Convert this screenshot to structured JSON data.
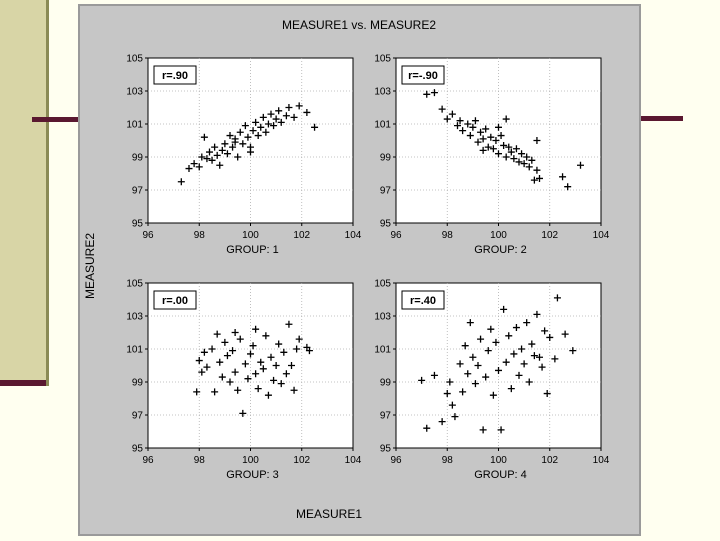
{
  "slide": {
    "colors": {
      "background": "#fffff0",
      "panel": "#d8d5a6",
      "rule": "#5a1830",
      "figure": "#c6c6c6"
    }
  },
  "chart_data": {
    "type": "scatter",
    "title": "MEASURE1 vs. MEASURE2",
    "xlabel": "MEASURE1",
    "ylabel": "MEASURE2",
    "xlim": [
      96,
      104
    ],
    "ylim": [
      95,
      105
    ],
    "xticks": [
      "96",
      "98",
      "100",
      "102",
      "104"
    ],
    "yticks": [
      "95",
      "97",
      "99",
      "101",
      "103",
      "105"
    ],
    "panels": [
      {
        "name": "GROUP: 1",
        "r_label": "r=.90",
        "points": [
          [
            97.3,
            97.5
          ],
          [
            97.6,
            98.3
          ],
          [
            97.8,
            98.6
          ],
          [
            98.0,
            98.4
          ],
          [
            98.1,
            99.0
          ],
          [
            98.3,
            98.9
          ],
          [
            98.4,
            99.3
          ],
          [
            98.5,
            98.8
          ],
          [
            98.6,
            99.6
          ],
          [
            98.7,
            99.1
          ],
          [
            98.8,
            98.5
          ],
          [
            98.9,
            99.4
          ],
          [
            99.0,
            99.8
          ],
          [
            99.1,
            99.2
          ],
          [
            99.2,
            100.3
          ],
          [
            99.3,
            99.6
          ],
          [
            99.4,
            100.1
          ],
          [
            99.5,
            99.0
          ],
          [
            99.6,
            100.5
          ],
          [
            99.7,
            99.8
          ],
          [
            99.8,
            100.9
          ],
          [
            99.9,
            100.2
          ],
          [
            100.0,
            99.6
          ],
          [
            100.1,
            100.6
          ],
          [
            100.2,
            101.1
          ],
          [
            100.3,
            100.3
          ],
          [
            100.4,
            100.8
          ],
          [
            100.5,
            101.4
          ],
          [
            100.6,
            100.5
          ],
          [
            100.7,
            101.0
          ],
          [
            100.8,
            101.6
          ],
          [
            100.9,
            100.9
          ],
          [
            101.0,
            101.3
          ],
          [
            101.1,
            101.8
          ],
          [
            101.2,
            101.1
          ],
          [
            101.4,
            101.5
          ],
          [
            101.5,
            102.0
          ],
          [
            101.7,
            101.4
          ],
          [
            101.9,
            102.1
          ],
          [
            102.2,
            101.7
          ],
          [
            102.5,
            100.8
          ],
          [
            98.2,
            100.2
          ],
          [
            100.0,
            99.3
          ],
          [
            99.4,
            99.9
          ]
        ]
      },
      {
        "name": "GROUP: 2",
        "r_label": "r=-.90",
        "points": [
          [
            97.2,
            102.8
          ],
          [
            97.5,
            102.9
          ],
          [
            97.8,
            101.9
          ],
          [
            98.0,
            101.3
          ],
          [
            98.2,
            101.6
          ],
          [
            98.4,
            100.9
          ],
          [
            98.5,
            101.2
          ],
          [
            98.6,
            100.6
          ],
          [
            98.8,
            101.0
          ],
          [
            98.9,
            100.3
          ],
          [
            99.0,
            100.8
          ],
          [
            99.1,
            101.2
          ],
          [
            99.2,
            99.9
          ],
          [
            99.3,
            100.5
          ],
          [
            99.4,
            100.1
          ],
          [
            99.5,
            100.7
          ],
          [
            99.6,
            99.6
          ],
          [
            99.7,
            100.2
          ],
          [
            99.8,
            99.5
          ],
          [
            99.9,
            100.0
          ],
          [
            100.0,
            99.2
          ],
          [
            100.1,
            100.3
          ],
          [
            100.2,
            99.7
          ],
          [
            100.3,
            99.0
          ],
          [
            100.4,
            99.6
          ],
          [
            100.5,
            99.3
          ],
          [
            100.6,
            98.9
          ],
          [
            100.7,
            99.5
          ],
          [
            100.8,
            98.7
          ],
          [
            100.9,
            99.2
          ],
          [
            101.0,
            98.6
          ],
          [
            101.1,
            99.0
          ],
          [
            101.2,
            98.4
          ],
          [
            101.3,
            98.8
          ],
          [
            101.4,
            97.6
          ],
          [
            101.5,
            98.2
          ],
          [
            101.6,
            97.7
          ],
          [
            102.5,
            97.8
          ],
          [
            102.7,
            97.2
          ],
          [
            103.2,
            98.5
          ],
          [
            100.0,
            100.8
          ],
          [
            101.5,
            100.0
          ],
          [
            99.4,
            99.4
          ],
          [
            100.3,
            101.3
          ]
        ]
      },
      {
        "name": "GROUP: 3",
        "r_label": "r=.00",
        "points": [
          [
            97.9,
            98.4
          ],
          [
            98.0,
            100.3
          ],
          [
            98.1,
            99.6
          ],
          [
            98.2,
            100.8
          ],
          [
            98.3,
            99.9
          ],
          [
            98.5,
            101.0
          ],
          [
            98.6,
            98.4
          ],
          [
            98.7,
            101.9
          ],
          [
            98.8,
            100.2
          ],
          [
            98.9,
            99.3
          ],
          [
            99.0,
            101.4
          ],
          [
            99.1,
            100.6
          ],
          [
            99.2,
            99.0
          ],
          [
            99.3,
            100.9
          ],
          [
            99.4,
            99.6
          ],
          [
            99.5,
            98.5
          ],
          [
            99.6,
            101.6
          ],
          [
            99.7,
            97.1
          ],
          [
            99.8,
            100.1
          ],
          [
            99.9,
            99.2
          ],
          [
            100.0,
            100.7
          ],
          [
            100.1,
            101.2
          ],
          [
            100.2,
            99.5
          ],
          [
            100.3,
            98.6
          ],
          [
            100.4,
            100.2
          ],
          [
            100.5,
            99.8
          ],
          [
            100.6,
            101.8
          ],
          [
            100.7,
            98.2
          ],
          [
            100.8,
            100.5
          ],
          [
            100.9,
            99.1
          ],
          [
            101.0,
            100.0
          ],
          [
            101.1,
            101.3
          ],
          [
            101.2,
            98.9
          ],
          [
            101.3,
            100.8
          ],
          [
            101.4,
            99.5
          ],
          [
            101.5,
            102.5
          ],
          [
            101.6,
            100.0
          ],
          [
            101.7,
            98.5
          ],
          [
            101.8,
            101.0
          ],
          [
            101.9,
            101.6
          ],
          [
            102.2,
            101.1
          ],
          [
            102.3,
            100.9
          ],
          [
            99.4,
            102.0
          ],
          [
            100.2,
            102.2
          ]
        ]
      },
      {
        "name": "GROUP: 4",
        "r_label": "r=.40",
        "points": [
          [
            97.0,
            99.1
          ],
          [
            97.2,
            96.2
          ],
          [
            97.5,
            99.4
          ],
          [
            97.8,
            96.6
          ],
          [
            98.0,
            98.3
          ],
          [
            98.1,
            99.0
          ],
          [
            98.2,
            97.6
          ],
          [
            98.3,
            96.9
          ],
          [
            98.5,
            100.1
          ],
          [
            98.6,
            98.4
          ],
          [
            98.7,
            101.2
          ],
          [
            98.8,
            99.5
          ],
          [
            98.9,
            102.6
          ],
          [
            99.0,
            100.5
          ],
          [
            99.1,
            98.9
          ],
          [
            99.2,
            100.0
          ],
          [
            99.3,
            101.6
          ],
          [
            99.4,
            96.1
          ],
          [
            99.5,
            99.3
          ],
          [
            99.6,
            100.9
          ],
          [
            99.7,
            102.2
          ],
          [
            99.8,
            98.2
          ],
          [
            99.9,
            101.4
          ],
          [
            100.0,
            99.7
          ],
          [
            100.1,
            96.1
          ],
          [
            100.2,
            103.4
          ],
          [
            100.3,
            100.2
          ],
          [
            100.4,
            101.8
          ],
          [
            100.5,
            98.6
          ],
          [
            100.6,
            100.7
          ],
          [
            100.7,
            102.3
          ],
          [
            100.8,
            99.4
          ],
          [
            100.9,
            101.0
          ],
          [
            101.0,
            100.1
          ],
          [
            101.1,
            102.6
          ],
          [
            101.2,
            99.0
          ],
          [
            101.3,
            101.3
          ],
          [
            101.4,
            100.6
          ],
          [
            101.5,
            103.1
          ],
          [
            101.7,
            99.9
          ],
          [
            101.8,
            102.1
          ],
          [
            101.9,
            98.3
          ],
          [
            102.0,
            101.7
          ],
          [
            102.2,
            100.4
          ],
          [
            102.3,
            104.1
          ],
          [
            102.6,
            101.9
          ],
          [
            102.9,
            100.9
          ],
          [
            101.6,
            100.5
          ]
        ]
      }
    ]
  }
}
